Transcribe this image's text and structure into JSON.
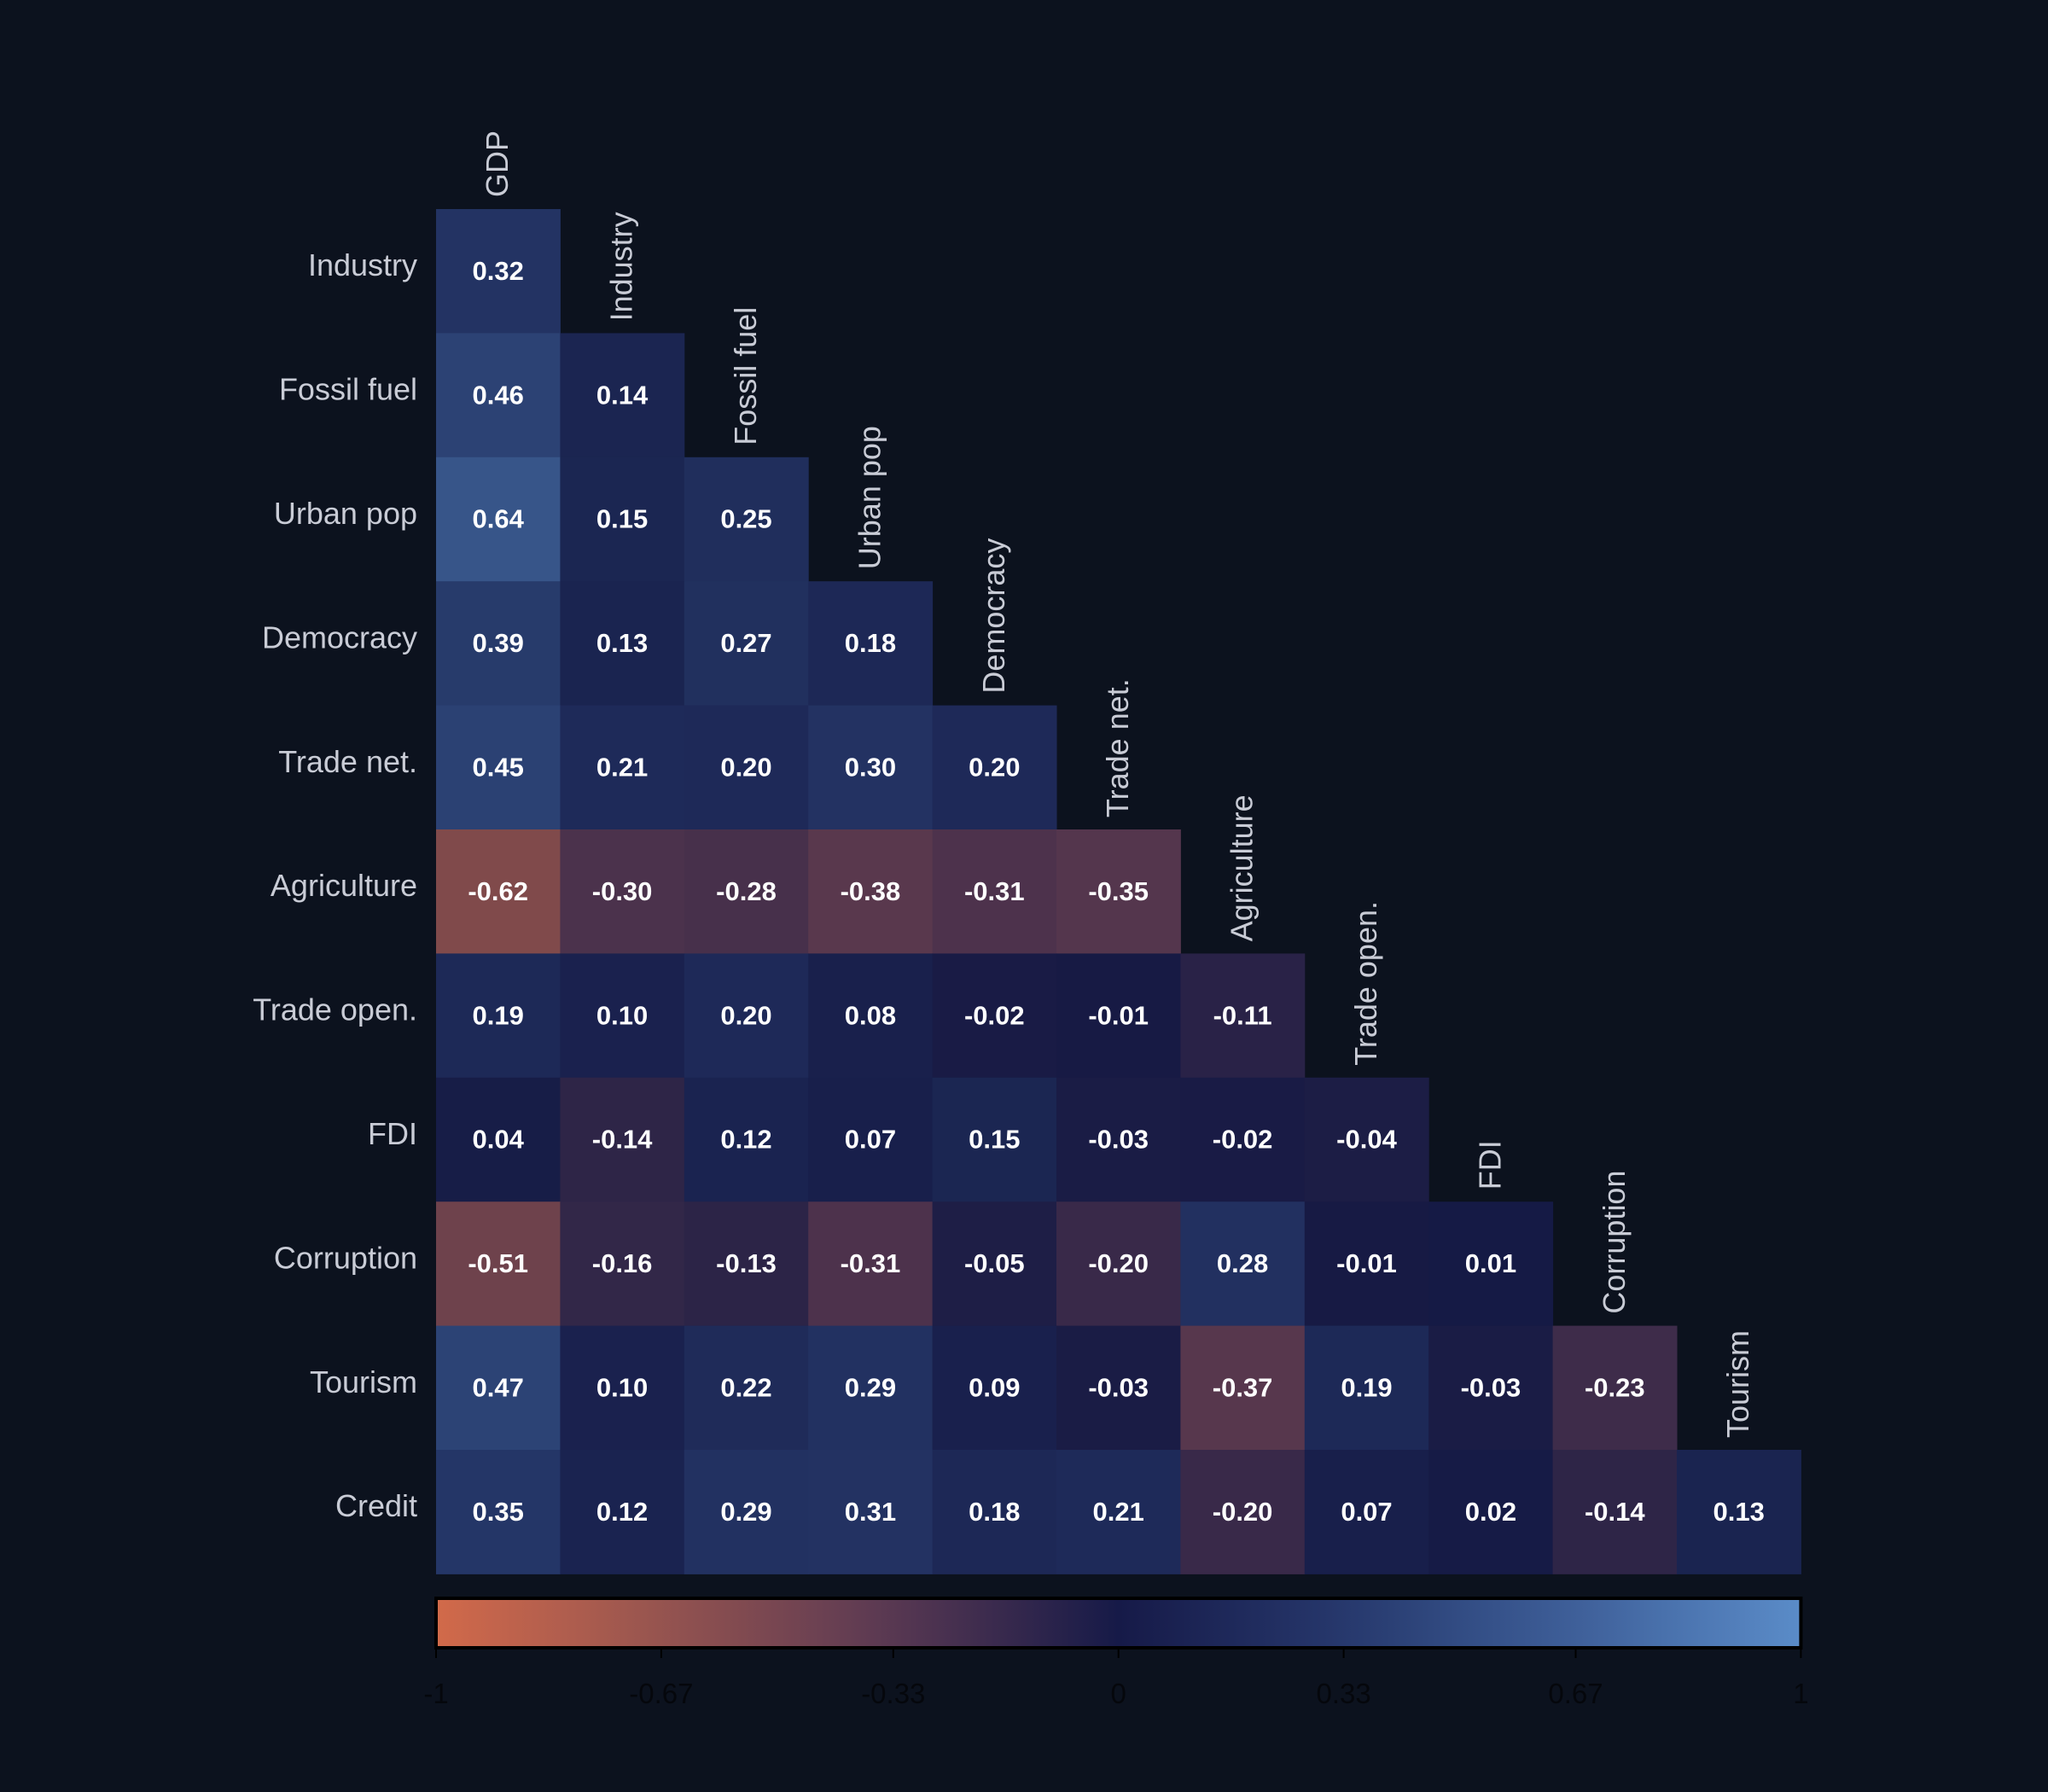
{
  "chart_data": {
    "type": "heatmap",
    "title": "",
    "columns": [
      "GDP",
      "Industry",
      "Fossil fuel",
      "Urban pop",
      "Democracy",
      "Trade net.",
      "Agriculture",
      "Trade open.",
      "FDI",
      "Corruption",
      "Tourism"
    ],
    "rows": [
      "Industry",
      "Fossil fuel",
      "Urban pop",
      "Democracy",
      "Trade net.",
      "Agriculture",
      "Trade open.",
      "FDI",
      "Corruption",
      "Tourism",
      "Credit"
    ],
    "values": [
      [
        0.32
      ],
      [
        0.46,
        0.14
      ],
      [
        0.64,
        0.15,
        0.25
      ],
      [
        0.39,
        0.13,
        0.27,
        0.18
      ],
      [
        0.45,
        0.21,
        0.2,
        0.3,
        0.2
      ],
      [
        -0.62,
        -0.3,
        -0.28,
        -0.38,
        -0.31,
        -0.35
      ],
      [
        0.19,
        0.1,
        0.2,
        0.08,
        -0.02,
        -0.01,
        -0.11
      ],
      [
        0.04,
        -0.14,
        0.12,
        0.07,
        0.15,
        -0.03,
        -0.02,
        -0.04
      ],
      [
        -0.51,
        -0.16,
        -0.13,
        -0.31,
        -0.05,
        -0.2,
        0.28,
        -0.01,
        0.01
      ],
      [
        0.47,
        0.1,
        0.22,
        0.29,
        0.09,
        -0.03,
        -0.37,
        0.19,
        -0.03,
        -0.23
      ],
      [
        0.35,
        0.12,
        0.29,
        0.31,
        0.18,
        0.21,
        -0.2,
        0.07,
        0.02,
        -0.14,
        0.13
      ]
    ],
    "colorbar": {
      "range": [
        -1,
        1
      ],
      "ticks": [
        -1,
        -0.67,
        -0.33,
        0,
        0.33,
        0.67,
        1
      ],
      "tick_labels": [
        "-1",
        "-0.67",
        "-0.33",
        "0",
        "0.33",
        "0.67",
        "1"
      ],
      "colors": {
        "-1": "#d26a4a",
        "0": "#161a48",
        "1": "#5a8cc8"
      }
    }
  }
}
